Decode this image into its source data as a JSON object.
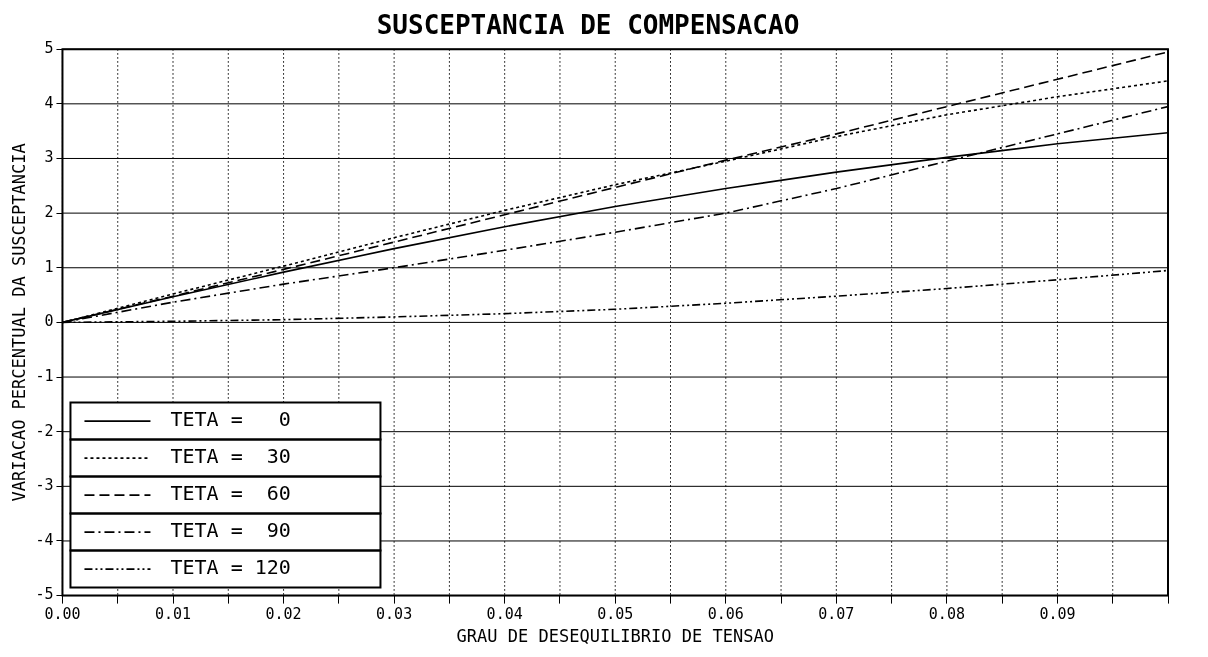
{
  "chart_data": {
    "type": "line",
    "title": "SUSCEPTANCIA DE COMPENSACAO",
    "xlabel": "GRAU DE DESEQUILIBRIO DE TENSAO",
    "ylabel": "VARIACAO PERCENTUAL DA SUSCEPTANCIA",
    "x": [
      0,
      0.01,
      0.02,
      0.03,
      0.04,
      0.05,
      0.06,
      0.07,
      0.08,
      0.09,
      0.1
    ],
    "series": [
      {
        "name": "TETA =   0",
        "color": "#000000",
        "line_style": "solid",
        "values": [
          0,
          0.47,
          0.92,
          1.35,
          1.75,
          2.12,
          2.45,
          2.75,
          3.02,
          3.27,
          3.47
        ]
      },
      {
        "name": "TETA =  30",
        "color": "#000000",
        "line_style": "dotted",
        "values": [
          0,
          0.52,
          1.03,
          1.55,
          2.05,
          2.52,
          2.95,
          3.4,
          3.8,
          4.13,
          4.42
        ]
      },
      {
        "name": "TETA =  60",
        "color": "#000000",
        "line_style": "dashed",
        "values": [
          0,
          0.48,
          0.97,
          1.47,
          1.97,
          2.47,
          2.97,
          3.45,
          3.95,
          4.45,
          4.95
        ]
      },
      {
        "name": "TETA =  90",
        "color": "#000000",
        "line_style": "dashdot",
        "values": [
          0,
          0.37,
          0.7,
          1.0,
          1.32,
          1.65,
          2.0,
          2.45,
          2.95,
          3.45,
          3.95
        ]
      },
      {
        "name": "TETA = 120",
        "color": "#000000",
        "line_style": "dashdotdot",
        "values": [
          0,
          0.02,
          0.05,
          0.1,
          0.16,
          0.24,
          0.35,
          0.48,
          0.62,
          0.78,
          0.95
        ]
      }
    ],
    "xlim": [
      0,
      0.1
    ],
    "xticks": [
      {
        "value": 0,
        "label": "0.00"
      },
      {
        "value": 0.005,
        "label": null
      },
      {
        "value": 0.01,
        "label": "0.01"
      },
      {
        "value": 0.015,
        "label": null
      },
      {
        "value": 0.02,
        "label": "0.02"
      },
      {
        "value": 0.025,
        "label": null
      },
      {
        "value": 0.03,
        "label": "0.03"
      },
      {
        "value": 0.035,
        "label": null
      },
      {
        "value": 0.04,
        "label": "0.04"
      },
      {
        "value": 0.045,
        "label": null
      },
      {
        "value": 0.05,
        "label": "0.05"
      },
      {
        "value": 0.055,
        "label": null
      },
      {
        "value": 0.06,
        "label": "0.06"
      },
      {
        "value": 0.065,
        "label": null
      },
      {
        "value": 0.07,
        "label": "0.07"
      },
      {
        "value": 0.075,
        "label": null
      },
      {
        "value": 0.08,
        "label": "0.08"
      },
      {
        "value": 0.085,
        "label": null
      },
      {
        "value": 0.09,
        "label": "0.09"
      },
      {
        "value": 0.095,
        "label": null
      },
      {
        "value": 0.1,
        "label": null
      }
    ],
    "ylim": [
      -5,
      5
    ],
    "yticks": [
      -5,
      -4,
      -3,
      -2,
      -1,
      0,
      1,
      2,
      3,
      4,
      5
    ],
    "grid": true,
    "legend": "bottom left",
    "marker": "none"
  }
}
